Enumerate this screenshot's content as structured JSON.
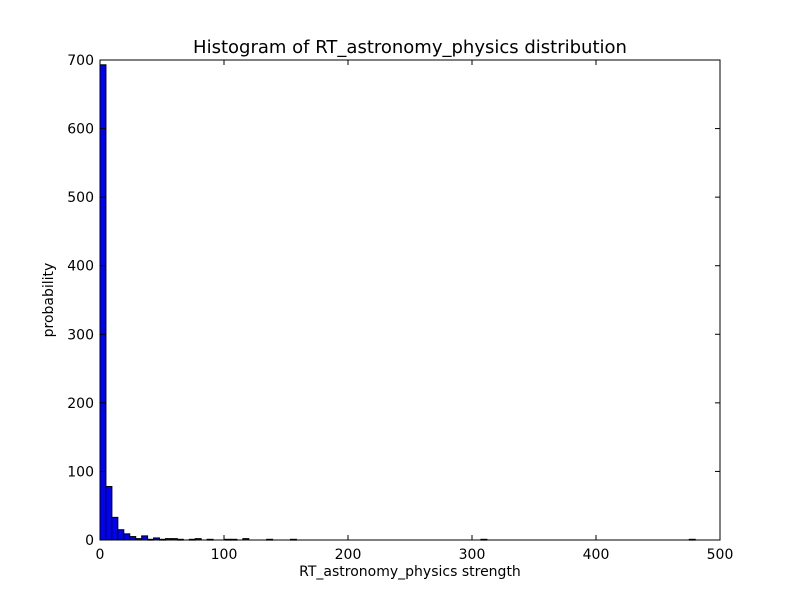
{
  "chart_data": {
    "type": "bar",
    "title": "Histogram of RT_astronomy_physics  distribution",
    "xlabel": "RT_astronomy_physics  strength",
    "ylabel": "probability",
    "xlim": [
      0,
      500
    ],
    "ylim": [
      0,
      700
    ],
    "xticks": [
      0,
      100,
      200,
      300,
      400,
      500
    ],
    "yticks": [
      0,
      100,
      200,
      300,
      400,
      500,
      600,
      700
    ],
    "grid": false,
    "bar_color": "#0000ff",
    "bin_width": 4.8,
    "bins": [
      {
        "x": 0.0,
        "value": 693
      },
      {
        "x": 4.8,
        "value": 78
      },
      {
        "x": 9.6,
        "value": 33
      },
      {
        "x": 14.4,
        "value": 15
      },
      {
        "x": 19.2,
        "value": 9
      },
      {
        "x": 24.0,
        "value": 5
      },
      {
        "x": 28.8,
        "value": 2
      },
      {
        "x": 33.6,
        "value": 6
      },
      {
        "x": 38.4,
        "value": 1
      },
      {
        "x": 43.2,
        "value": 3
      },
      {
        "x": 48.0,
        "value": 1
      },
      {
        "x": 52.8,
        "value": 2
      },
      {
        "x": 57.6,
        "value": 2
      },
      {
        "x": 62.4,
        "value": 1
      },
      {
        "x": 72.0,
        "value": 1
      },
      {
        "x": 76.8,
        "value": 2
      },
      {
        "x": 86.4,
        "value": 1
      },
      {
        "x": 100.8,
        "value": 1
      },
      {
        "x": 105.6,
        "value": 1
      },
      {
        "x": 115.2,
        "value": 2
      },
      {
        "x": 134.4,
        "value": 1
      },
      {
        "x": 153.6,
        "value": 1
      },
      {
        "x": 307.2,
        "value": 1
      },
      {
        "x": 475.2,
        "value": 1
      }
    ]
  }
}
